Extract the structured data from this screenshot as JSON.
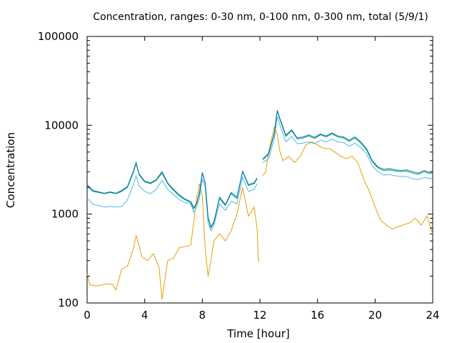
{
  "chart_data": {
    "type": "line",
    "title": "Concentration, ranges: 0-30 nm, 0-100 nm, 0-300 nm, total (5/9/1)",
    "xlabel": "Time [hour]",
    "ylabel": "Concentration",
    "xlim": [
      0,
      24
    ],
    "ylim": [
      100,
      100000
    ],
    "yscale": "log",
    "x_ticks": [
      0,
      4,
      8,
      12,
      16,
      20,
      24
    ],
    "y_ticks": [
      100,
      1000,
      10000,
      100000
    ],
    "y_tick_labels": [
      "100",
      "1000",
      "10000",
      "100000"
    ],
    "grid": false,
    "legend": "none",
    "series": [
      {
        "color": "#e69f00",
        "x": [
          0,
          0.2,
          0.6,
          1,
          1.4,
          1.8,
          2,
          2.4,
          2.8,
          3.2,
          3.4,
          3.6,
          3.8,
          4.2,
          4.6,
          5,
          5.2,
          5.6,
          6,
          6.4,
          6.8,
          7.2,
          7.4,
          7.6,
          7.8,
          8,
          8.2,
          8.4,
          8.6,
          8.8,
          9.2,
          9.6,
          10,
          10.4,
          10.8,
          11.2,
          11.6,
          11.8,
          11.9,
          12.2,
          12.4,
          12.6,
          12.8,
          13,
          13.2,
          13.4,
          13.6,
          14,
          14.4,
          14.8,
          15.2,
          15.6,
          16,
          16.4,
          16.8,
          17.2,
          17.6,
          18,
          18.4,
          18.8,
          19.2,
          19.6,
          20,
          20.4,
          20.8,
          21.2,
          21.6,
          22,
          22.4,
          22.8,
          23.2,
          23.6,
          24
        ],
        "values": [
          210,
          160,
          155,
          160,
          165,
          160,
          140,
          240,
          260,
          400,
          570,
          450,
          330,
          300,
          360,
          250,
          110,
          300,
          320,
          420,
          430,
          450,
          800,
          1500,
          2200,
          1600,
          400,
          200,
          300,
          500,
          600,
          500,
          650,
          1000,
          2000,
          950,
          1200,
          700,
          290,
          2700,
          3000,
          5000,
          7000,
          9500,
          8000,
          5000,
          4000,
          4500,
          3800,
          4500,
          6000,
          6500,
          6000,
          5500,
          5500,
          5000,
          4500,
          4200,
          4500,
          3800,
          2500,
          1800,
          1200,
          850,
          750,
          680,
          720,
          760,
          800,
          900,
          750,
          950,
          600
        ]
      },
      {
        "color": "#56b4e9",
        "x": [
          0,
          0.4,
          0.8,
          1.2,
          1.6,
          2,
          2.4,
          2.8,
          3.2,
          3.4,
          3.6,
          4,
          4.4,
          4.8,
          5.2,
          5.6,
          6,
          6.4,
          6.8,
          7.2,
          7.4,
          7.6,
          7.8,
          8,
          8.2,
          8.4,
          8.6,
          8.8,
          9.2,
          9.6,
          10,
          10.4,
          10.8,
          11.2,
          11.6,
          11.8,
          12.2,
          12.6,
          13,
          13.2,
          13.4,
          13.8,
          14.2,
          14.6,
          15,
          15.4,
          15.8,
          16.2,
          16.6,
          17,
          17.4,
          17.8,
          18.2,
          18.6,
          19,
          19.4,
          19.8,
          20.2,
          20.6,
          21,
          21.4,
          21.8,
          22.2,
          22.6,
          23,
          23.4,
          23.8,
          24
        ],
        "values": [
          1500,
          1300,
          1250,
          1200,
          1220,
          1200,
          1220,
          1450,
          2100,
          2700,
          2100,
          1800,
          1700,
          1900,
          2400,
          1900,
          1650,
          1450,
          1350,
          1300,
          1050,
          1200,
          1500,
          2500,
          2000,
          800,
          650,
          750,
          1300,
          1100,
          1400,
          1300,
          2600,
          1800,
          1900,
          2200,
          3800,
          4200,
          7000,
          12500,
          10000,
          6500,
          7500,
          6200,
          6300,
          6500,
          6200,
          6800,
          6500,
          7000,
          6500,
          6400,
          5800,
          6300,
          5600,
          4800,
          3500,
          3000,
          2750,
          2800,
          2700,
          2650,
          2650,
          2500,
          2450,
          2600,
          2500,
          2600
        ]
      },
      {
        "color": "#009e73",
        "x": [
          0,
          0.4,
          0.8,
          1.2,
          1.6,
          2,
          2.4,
          2.8,
          3.2,
          3.4,
          3.6,
          4,
          4.4,
          4.8,
          5.2,
          5.6,
          6,
          6.4,
          6.8,
          7.2,
          7.4,
          7.6,
          7.8,
          8,
          8.2,
          8.4,
          8.6,
          8.8,
          9.2,
          9.6,
          10,
          10.4,
          10.8,
          11.2,
          11.6,
          11.8,
          12.2,
          12.6,
          13,
          13.2,
          13.4,
          13.8,
          14.2,
          14.6,
          15,
          15.4,
          15.8,
          16.2,
          16.6,
          17,
          17.4,
          17.8,
          18.2,
          18.6,
          19,
          19.4,
          19.8,
          20.2,
          20.6,
          21,
          21.4,
          21.8,
          22.2,
          22.6,
          23,
          23.4,
          23.8,
          24
        ],
        "values": [
          2100,
          1800,
          1750,
          1700,
          1750,
          1700,
          1800,
          2000,
          2900,
          3700,
          2800,
          2300,
          2200,
          2400,
          2900,
          2200,
          1850,
          1600,
          1450,
          1350,
          1150,
          1300,
          1700,
          2900,
          2200,
          900,
          700,
          800,
          1500,
          1250,
          1700,
          1500,
          3000,
          2100,
          2200,
          2500,
          4100,
          4700,
          8000,
          14500,
          11500,
          7500,
          8700,
          7000,
          7200,
          7600,
          7100,
          7800,
          7400,
          8000,
          7400,
          7200,
          6600,
          7200,
          6300,
          5300,
          3900,
          3300,
          3100,
          3150,
          3050,
          3000,
          3050,
          2900,
          2800,
          3000,
          2850,
          2900
        ]
      },
      {
        "color": "#0072b2",
        "x": [
          0,
          0.4,
          0.8,
          1.2,
          1.6,
          2,
          2.4,
          2.8,
          3.2,
          3.4,
          3.6,
          4,
          4.4,
          4.8,
          5.2,
          5.6,
          6,
          6.4,
          6.8,
          7.2,
          7.4,
          7.6,
          7.8,
          8,
          8.2,
          8.4,
          8.6,
          8.8,
          9.2,
          9.6,
          10,
          10.4,
          10.8,
          11.2,
          11.6,
          11.8,
          12.2,
          12.6,
          13,
          13.2,
          13.4,
          13.8,
          14.2,
          14.6,
          15,
          15.4,
          15.8,
          16.2,
          16.6,
          17,
          17.4,
          17.8,
          18.2,
          18.6,
          19,
          19.4,
          19.8,
          20.2,
          20.6,
          21,
          21.4,
          21.8,
          22.2,
          22.6,
          23,
          23.4,
          23.8,
          24
        ],
        "values": [
          2150,
          1850,
          1780,
          1720,
          1780,
          1720,
          1850,
          2050,
          3000,
          3800,
          2850,
          2350,
          2250,
          2450,
          3000,
          2250,
          1900,
          1650,
          1480,
          1380,
          1180,
          1320,
          1750,
          2950,
          2250,
          920,
          720,
          820,
          1550,
          1280,
          1750,
          1550,
          3050,
          2150,
          2250,
          2550,
          4200,
          4800,
          8200,
          14800,
          11800,
          7700,
          8900,
          7200,
          7400,
          7800,
          7300,
          8000,
          7600,
          8200,
          7600,
          7400,
          6800,
          7400,
          6500,
          5500,
          4000,
          3400,
          3200,
          3250,
          3150,
          3100,
          3150,
          3000,
          2900,
          3100,
          2950,
          3000
        ]
      }
    ]
  }
}
